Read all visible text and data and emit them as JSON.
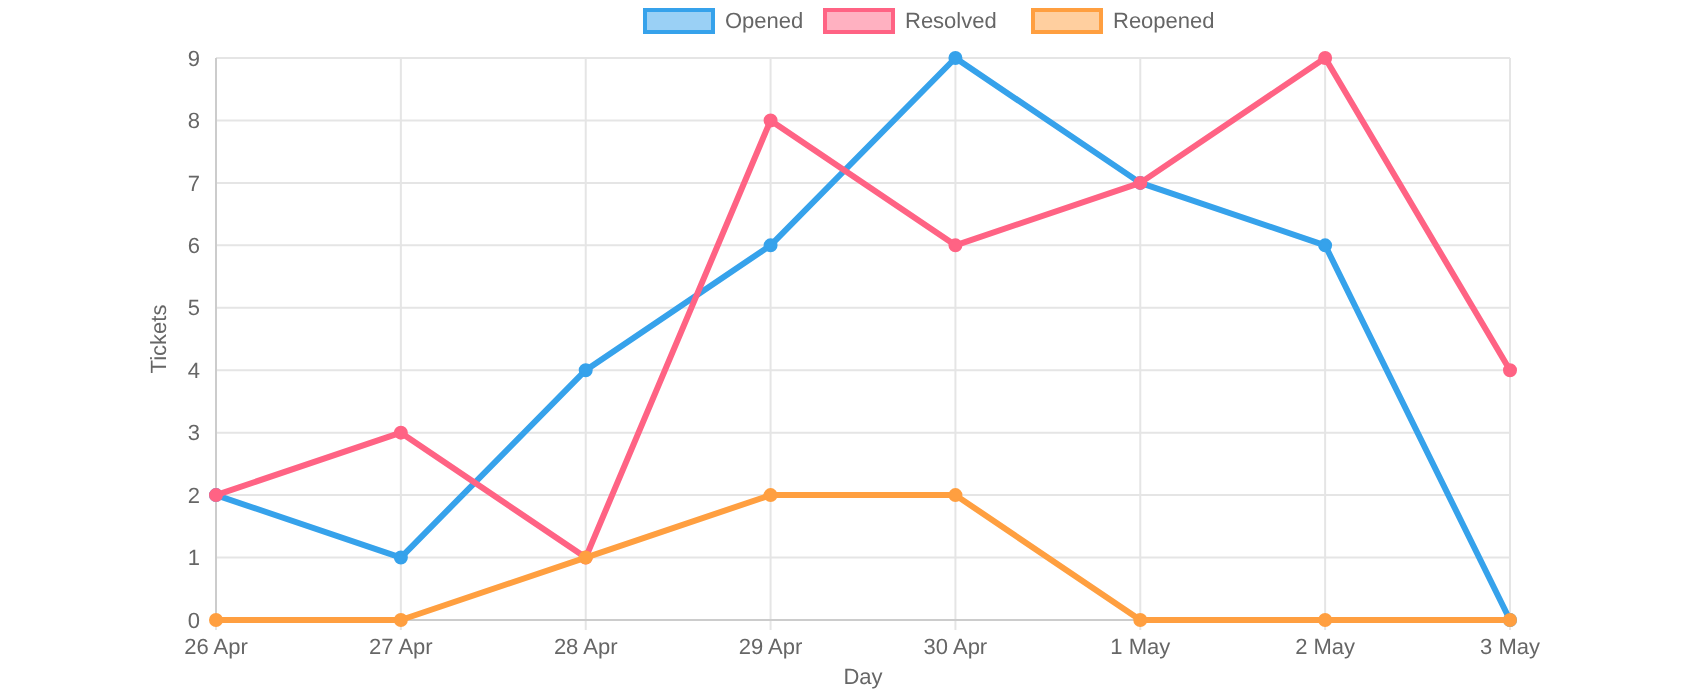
{
  "chart_data": {
    "type": "line",
    "xlabel": "Day",
    "ylabel": "Tickets",
    "categories": [
      "26 Apr",
      "27 Apr",
      "28 Apr",
      "29 Apr",
      "30 Apr",
      "1 May",
      "2 May",
      "3 May"
    ],
    "series": [
      {
        "name": "Opened",
        "color": "#36a2eb",
        "values": [
          2,
          1,
          4,
          6,
          9,
          7,
          6,
          0
        ]
      },
      {
        "name": "Resolved",
        "color": "#ff6384",
        "values": [
          2,
          3,
          1,
          8,
          6,
          7,
          9,
          4
        ]
      },
      {
        "name": "Reopened",
        "color": "#ff9f40",
        "values": [
          0,
          0,
          1,
          2,
          2,
          0,
          0,
          0
        ]
      }
    ],
    "ylim": [
      0,
      9
    ],
    "yticks": [
      0,
      1,
      2,
      3,
      4,
      5,
      6,
      7,
      8,
      9
    ],
    "grid": true,
    "legend": "top",
    "marker": "circle",
    "line_style": "solid"
  }
}
